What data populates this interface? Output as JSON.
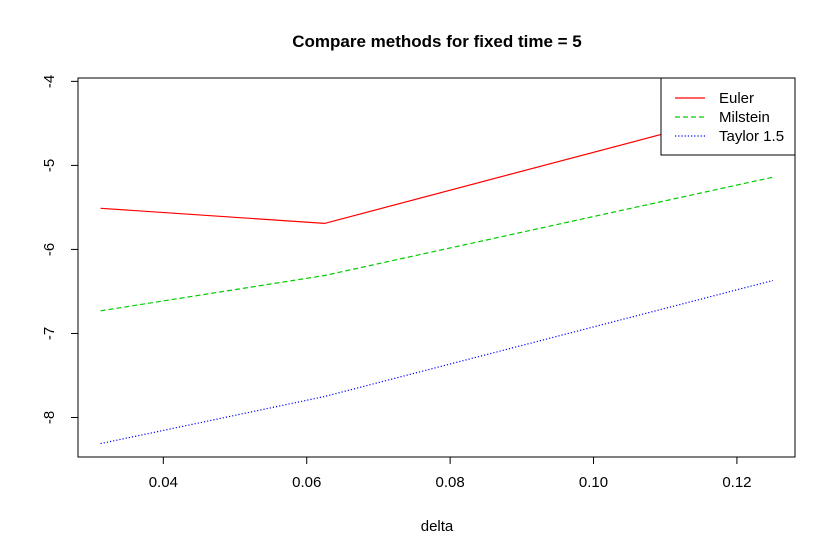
{
  "chart_data": {
    "type": "line",
    "title": "Compare methods for fixed time = 5",
    "xlabel": "delta",
    "ylabel": "",
    "xlim": [
      0.0281,
      0.1281
    ],
    "ylim": [
      -8.47,
      -3.96
    ],
    "x_ticks": [
      0.04,
      0.06,
      0.08,
      0.1,
      0.12
    ],
    "x_tick_labels": [
      "0.04",
      "0.06",
      "0.08",
      "0.10",
      "0.12"
    ],
    "y_ticks": [
      -8,
      -7,
      -6,
      -5,
      -4
    ],
    "y_tick_labels": [
      "-8",
      "-7",
      "-6",
      "-5",
      "-4"
    ],
    "grid": false,
    "legend_position": "top-right",
    "series": [
      {
        "name": "Euler",
        "color": "#ff0000",
        "dash": "solid",
        "x": [
          0.03125,
          0.0625,
          0.125
        ],
        "y": [
          -5.51,
          -5.69,
          -4.28
        ]
      },
      {
        "name": "Milstein",
        "color": "#00cd00",
        "dash": "dashed",
        "x": [
          0.03125,
          0.0625,
          0.125
        ],
        "y": [
          -6.73,
          -6.31,
          -5.14
        ]
      },
      {
        "name": "Taylor 1.5",
        "color": "#0000ff",
        "dash": "dotted",
        "x": [
          0.03125,
          0.0625,
          0.125
        ],
        "y": [
          -8.31,
          -7.75,
          -6.37
        ]
      }
    ]
  }
}
